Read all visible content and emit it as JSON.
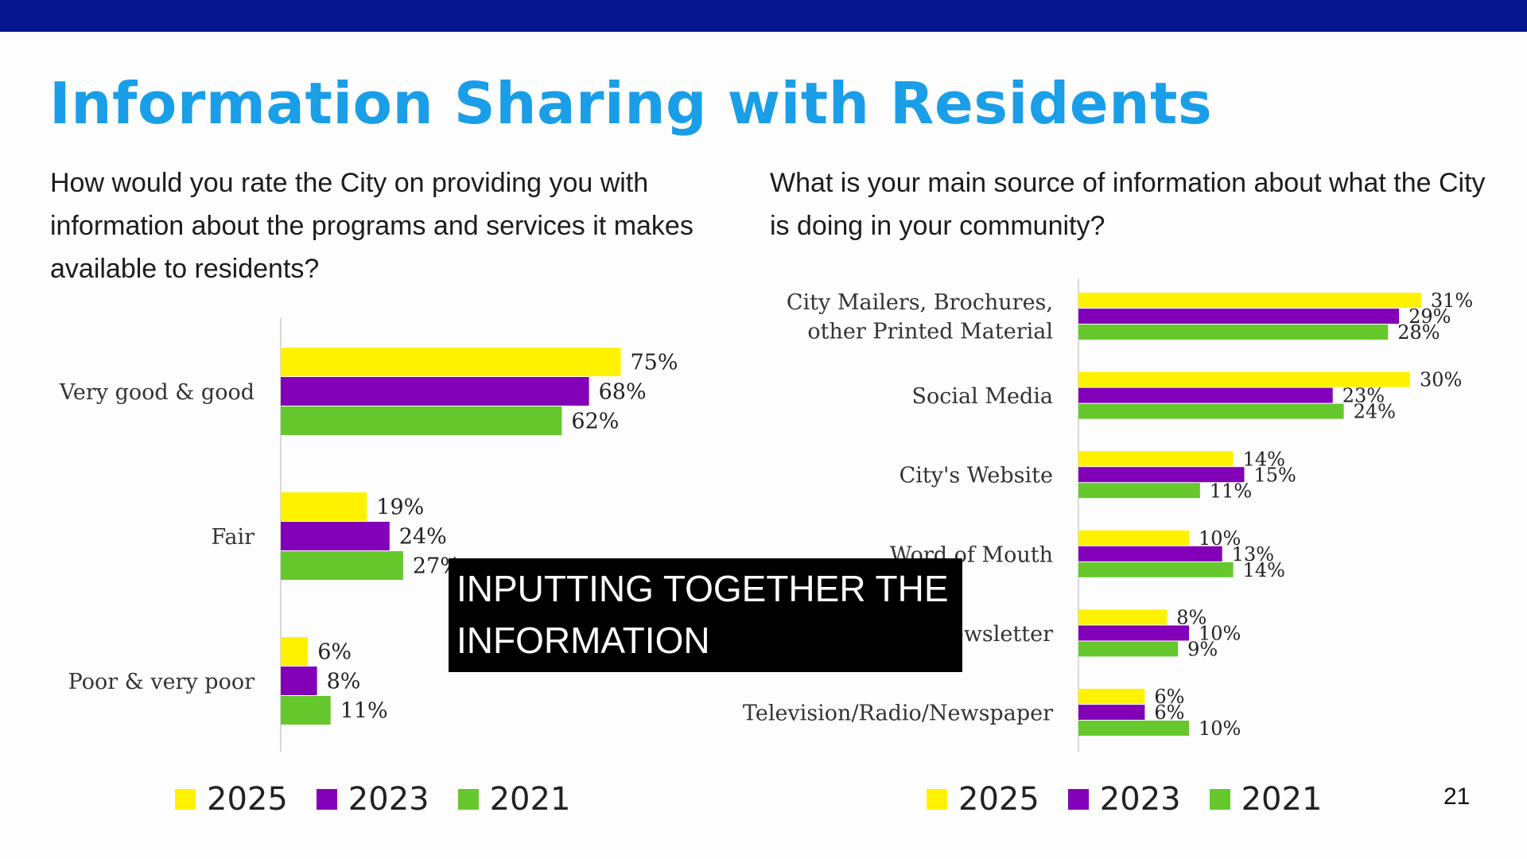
{
  "slide": {
    "title": "Information Sharing with Residents",
    "page_number": "21",
    "colors": {
      "top_bar": "#05148f",
      "title": "#1a9ee8",
      "2025": "#fff200",
      "2023": "#8200b8",
      "2021": "#66c82c"
    }
  },
  "caption": {
    "line1": "INPUTTING TOGETHER THE",
    "line2": "INFORMATION"
  },
  "left": {
    "question": "How would you rate the City on providing you with information about the programs and services it makes available to residents?",
    "legend": [
      {
        "label": "2025",
        "color": "#fff200"
      },
      {
        "label": "2023",
        "color": "#8200b8"
      },
      {
        "label": "2021",
        "color": "#66c82c"
      }
    ]
  },
  "right": {
    "question": "What is your main source of information about what the City is doing in your community?",
    "legend": [
      {
        "label": "2025",
        "color": "#fff200"
      },
      {
        "label": "2023",
        "color": "#8200b8"
      },
      {
        "label": "2021",
        "color": "#66c82c"
      }
    ]
  },
  "chart_data": [
    {
      "type": "bar",
      "orientation": "horizontal",
      "categories": [
        "Very good & good",
        "Fair",
        "Poor & very poor"
      ],
      "series": [
        {
          "name": "2025",
          "color": "#fff200",
          "values": [
            75,
            19,
            6
          ],
          "labels": [
            "75%",
            "19%",
            "6%"
          ]
        },
        {
          "name": "2023",
          "color": "#8200b8",
          "values": [
            68,
            24,
            8
          ],
          "labels": [
            "68%",
            "24%",
            "8%"
          ]
        },
        {
          "name": "2021",
          "color": "#66c82c",
          "values": [
            62,
            27,
            11
          ],
          "labels": [
            "62%",
            "27%",
            "11%"
          ]
        }
      ],
      "xlim": [
        0,
        100
      ],
      "legend": "bottom",
      "grid": false
    },
    {
      "type": "bar",
      "orientation": "horizontal",
      "categories": [
        "City Mailers, Brochures, other Printed Material",
        "Social Media",
        "City's Website",
        "Word of Mouth",
        "Newsletter",
        "Television/Radio/Newspaper"
      ],
      "series": [
        {
          "name": "2025",
          "color": "#fff200",
          "values": [
            31,
            30,
            14,
            10,
            8,
            6
          ],
          "labels": [
            "31%",
            "30%",
            "14%",
            "10%",
            "8%",
            "6%"
          ]
        },
        {
          "name": "2023",
          "color": "#8200b8",
          "values": [
            29,
            23,
            15,
            13,
            10,
            6
          ],
          "labels": [
            "29%",
            "23%",
            "15%",
            "13%",
            "10%",
            "6%"
          ]
        },
        {
          "name": "2021",
          "color": "#66c82c",
          "values": [
            28,
            24,
            11,
            14,
            9,
            10
          ],
          "labels": [
            "28%",
            "24%",
            "11%",
            "14%",
            "9%",
            "10%"
          ]
        }
      ],
      "xlim": [
        0,
        35
      ],
      "legend": "bottom",
      "grid": false
    }
  ]
}
